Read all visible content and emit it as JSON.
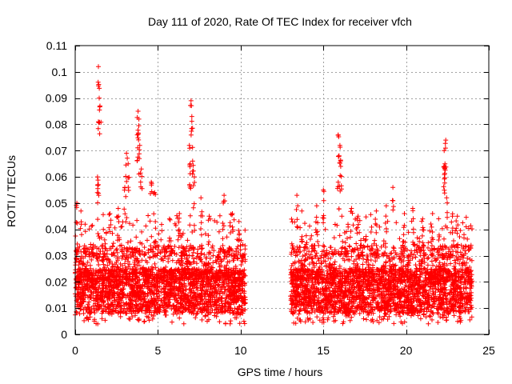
{
  "chart_data": {
    "type": "scatter",
    "title": "Day 111 of 2020, Rate Of TEC Index for receiver vfch",
    "xlabel": "GPS time / hours",
    "ylabel": "ROTI / TECUs",
    "xlim": [
      0,
      25
    ],
    "ylim": [
      0,
      0.11
    ],
    "xticks": [
      0,
      5,
      10,
      15,
      20,
      25
    ],
    "xtick_labels": [
      "0",
      "5",
      "10",
      "15",
      "20",
      "25"
    ],
    "yticks": [
      0,
      0.01,
      0.02,
      0.03,
      0.04,
      0.05,
      0.06,
      0.07,
      0.08,
      0.09,
      0.1,
      0.11
    ],
    "ytick_labels": [
      "0",
      "0.01",
      "0.02",
      "0.03",
      "0.04",
      "0.05",
      "0.06",
      "0.07",
      "0.08",
      "0.09",
      "0.1",
      "0.11"
    ],
    "grid": true,
    "marker": "+",
    "color": "#ff0000",
    "series": [
      {
        "name": "ROTI",
        "segments": [
          [
            0,
            10.3
          ],
          [
            13.0,
            24.0
          ]
        ],
        "baseline_range": [
          0.008,
          0.025
        ],
        "peaks": [
          {
            "x": 0.1,
            "y": 0.05
          },
          {
            "x": 0.35,
            "y": 0.047
          },
          {
            "x": 0.6,
            "y": 0.042
          },
          {
            "x": 1.4,
            "y": 0.102
          },
          {
            "x": 1.45,
            "y": 0.09
          },
          {
            "x": 1.5,
            "y": 0.087
          },
          {
            "x": 1.35,
            "y": 0.06
          },
          {
            "x": 1.4,
            "y": 0.057
          },
          {
            "x": 2.1,
            "y": 0.046
          },
          {
            "x": 2.6,
            "y": 0.048
          },
          {
            "x": 3.1,
            "y": 0.069
          },
          {
            "x": 3.2,
            "y": 0.065
          },
          {
            "x": 3.0,
            "y": 0.056
          },
          {
            "x": 3.8,
            "y": 0.085
          },
          {
            "x": 3.85,
            "y": 0.082
          },
          {
            "x": 3.75,
            "y": 0.076
          },
          {
            "x": 3.9,
            "y": 0.072
          },
          {
            "x": 4.0,
            "y": 0.063
          },
          {
            "x": 4.6,
            "y": 0.058
          },
          {
            "x": 4.8,
            "y": 0.054
          },
          {
            "x": 5.7,
            "y": 0.044
          },
          {
            "x": 6.3,
            "y": 0.046
          },
          {
            "x": 6.9,
            "y": 0.072
          },
          {
            "x": 7.0,
            "y": 0.089
          },
          {
            "x": 7.05,
            "y": 0.083
          },
          {
            "x": 7.1,
            "y": 0.066
          },
          {
            "x": 6.95,
            "y": 0.065
          },
          {
            "x": 7.2,
            "y": 0.06
          },
          {
            "x": 7.6,
            "y": 0.052
          },
          {
            "x": 8.1,
            "y": 0.045
          },
          {
            "x": 9.0,
            "y": 0.053
          },
          {
            "x": 9.5,
            "y": 0.046
          },
          {
            "x": 9.9,
            "y": 0.043
          },
          {
            "x": 13.4,
            "y": 0.053
          },
          {
            "x": 13.7,
            "y": 0.047
          },
          {
            "x": 14.6,
            "y": 0.049
          },
          {
            "x": 15.0,
            "y": 0.055
          },
          {
            "x": 15.9,
            "y": 0.076
          },
          {
            "x": 16.0,
            "y": 0.072
          },
          {
            "x": 15.95,
            "y": 0.068
          },
          {
            "x": 16.05,
            "y": 0.064
          },
          {
            "x": 15.9,
            "y": 0.058
          },
          {
            "x": 16.7,
            "y": 0.048
          },
          {
            "x": 17.1,
            "y": 0.045
          },
          {
            "x": 18.2,
            "y": 0.047
          },
          {
            "x": 18.8,
            "y": 0.049
          },
          {
            "x": 19.2,
            "y": 0.056
          },
          {
            "x": 19.9,
            "y": 0.046
          },
          {
            "x": 20.4,
            "y": 0.048
          },
          {
            "x": 21.0,
            "y": 0.044
          },
          {
            "x": 21.6,
            "y": 0.046
          },
          {
            "x": 22.3,
            "y": 0.07
          },
          {
            "x": 22.4,
            "y": 0.074
          },
          {
            "x": 22.35,
            "y": 0.065
          },
          {
            "x": 22.3,
            "y": 0.064
          },
          {
            "x": 22.45,
            "y": 0.052
          },
          {
            "x": 22.8,
            "y": 0.045
          },
          {
            "x": 23.1,
            "y": 0.045
          },
          {
            "x": 23.5,
            "y": 0.038
          }
        ]
      }
    ]
  }
}
